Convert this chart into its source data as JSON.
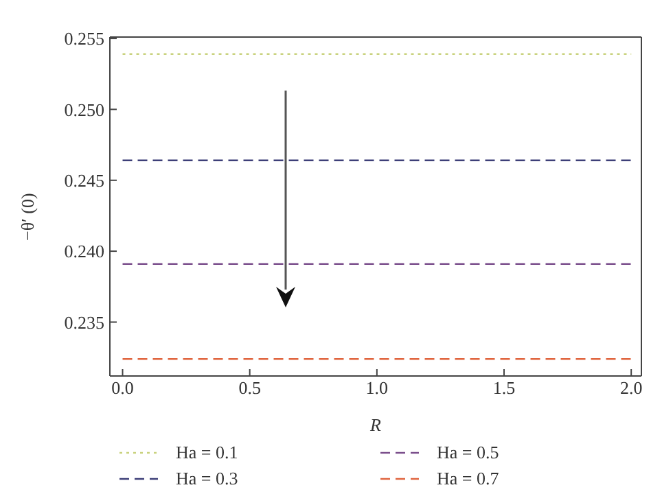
{
  "chart_data": {
    "type": "line",
    "xlabel": "R",
    "ylabel": "−θ′ (0)",
    "x": [
      0,
      2
    ],
    "series": [
      {
        "name": "Ha = 0.1",
        "color": "#c9d27e",
        "values": [
          0.2539,
          0.2539
        ],
        "line_style": "dotted"
      },
      {
        "name": "Ha = 0.3",
        "color": "#3d3f78",
        "values": [
          0.2464,
          0.2464
        ],
        "line_style": "dashed"
      },
      {
        "name": "Ha = 0.5",
        "color": "#7b4f8c",
        "values": [
          0.2391,
          0.2391
        ],
        "line_style": "dashed"
      },
      {
        "name": "Ha = 0.7",
        "color": "#e0653f",
        "values": [
          0.2324,
          0.2324
        ],
        "line_style": "dashed"
      }
    ],
    "xlim": [
      -0.05,
      2.04
    ],
    "xticks": [
      {
        "value": 0,
        "label": "0.0"
      },
      0.5,
      {
        "value": 1,
        "label": "1.0"
      },
      1.5,
      {
        "value": 2,
        "label": "2.0"
      }
    ],
    "ylim": [
      0.2312,
      0.2551
    ],
    "yticks": [
      0.235,
      {
        "value": 0.24,
        "label": "0.240"
      },
      0.245,
      {
        "value": 0.25,
        "label": "0.250"
      },
      0.255
    ],
    "legend": "bottom",
    "grid": false,
    "marker": "none"
  }
}
